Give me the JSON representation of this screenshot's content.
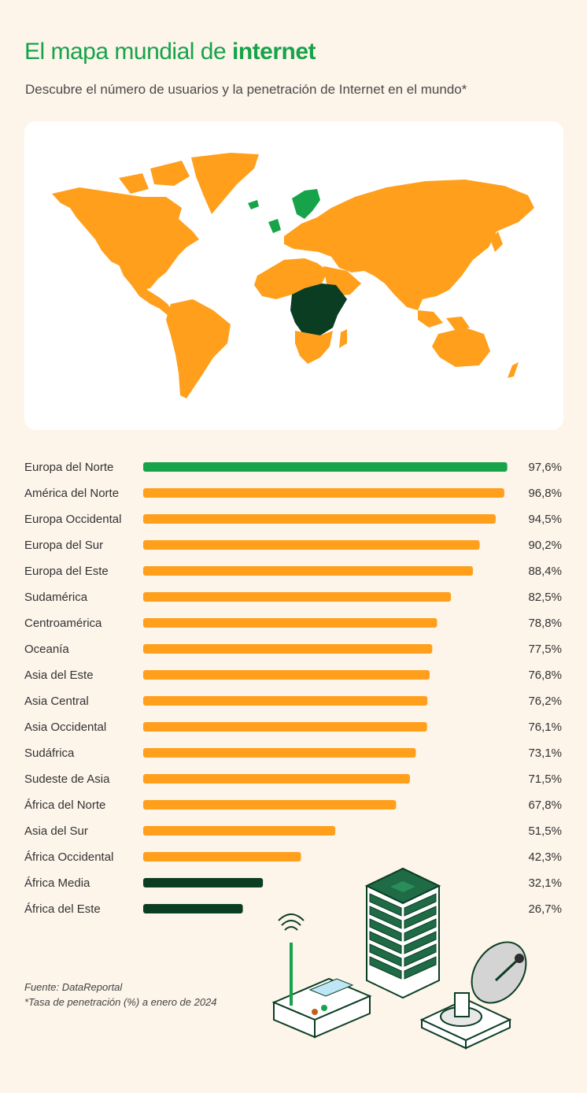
{
  "header": {
    "title_prefix": "El mapa mundial de ",
    "title_bold": "internet",
    "subtitle": "Descubre el número de usuarios y la penetración de Internet en el mundo*"
  },
  "map": {
    "colors": {
      "high": "#16a34a",
      "mid": "#ff9f1c",
      "low": "#0b3d23"
    }
  },
  "chart_data": {
    "type": "bar",
    "orientation": "horizontal",
    "categories": [
      "Europa del Norte",
      "América del Norte",
      "Europa Occidental",
      "Europa del Sur",
      "Europa del Este",
      "Sudamérica",
      "Centroamérica",
      "Oceanía",
      "Asia del Este",
      "Asia Central",
      "Asia Occidental",
      "Sudáfrica",
      "Sudeste de Asia",
      "África del Norte",
      "Asia del Sur",
      "África Occidental",
      "África Media",
      "África del Este"
    ],
    "values": [
      97.6,
      96.8,
      94.5,
      90.2,
      88.4,
      82.5,
      78.8,
      77.5,
      76.8,
      76.2,
      76.1,
      73.1,
      71.5,
      67.8,
      51.5,
      42.3,
      32.1,
      26.7
    ],
    "value_labels": [
      "97,6%",
      "96,8%",
      "94,5%",
      "90,2%",
      "88,4%",
      "82,5%",
      "78,8%",
      "77,5%",
      "76,8%",
      "76,2%",
      "76,1%",
      "73,1%",
      "71,5%",
      "67,8%",
      "51,5%",
      "42,3%",
      "32,1%",
      "26,7%"
    ],
    "bar_colors": [
      "#16a34a",
      "#ff9f1c",
      "#ff9f1c",
      "#ff9f1c",
      "#ff9f1c",
      "#ff9f1c",
      "#ff9f1c",
      "#ff9f1c",
      "#ff9f1c",
      "#ff9f1c",
      "#ff9f1c",
      "#ff9f1c",
      "#ff9f1c",
      "#ff9f1c",
      "#ff9f1c",
      "#ff9f1c",
      "#0b3d23",
      "#0b3d23"
    ],
    "xlim": [
      0,
      100
    ],
    "grid": false,
    "title": "",
    "xlabel": "",
    "ylabel": ""
  },
  "footer": {
    "source": "Fuente: DataReportal",
    "note": "*Tasa de penetración (%) a enero de 2024"
  }
}
